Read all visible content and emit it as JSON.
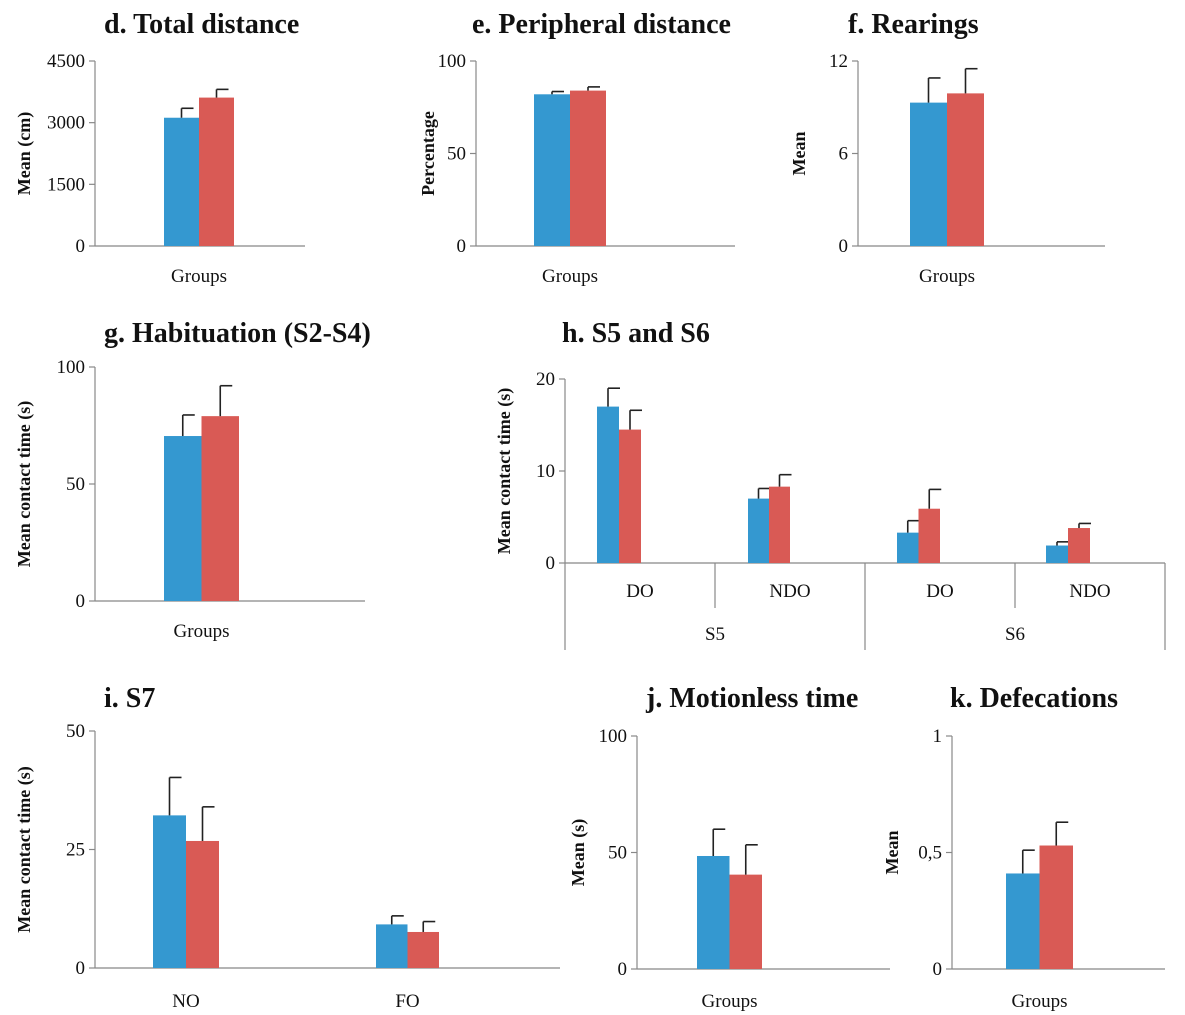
{
  "colors": {
    "series_a": "#3498d0",
    "series_b": "#d95a55"
  },
  "chart_data": [
    {
      "type": "bar",
      "panel": "d",
      "title": "d. Total distance",
      "ylabel": "Mean (cm)",
      "xlabel": "Groups",
      "ylim": [
        0,
        4500
      ],
      "yticks": [
        0,
        1500,
        3000,
        4500
      ],
      "ytick_labels": [
        "0",
        "1500",
        "3000",
        "4500"
      ],
      "categories": [
        ""
      ],
      "series": [
        {
          "values": [
            3120
          ],
          "errors": [
            230
          ]
        },
        {
          "values": [
            3610
          ],
          "errors": [
            200
          ]
        }
      ]
    },
    {
      "type": "bar",
      "panel": "e",
      "title": "e. Peripheral distance",
      "ylabel": "Percentage",
      "xlabel": "Groups",
      "ylim": [
        0,
        100
      ],
      "yticks": [
        0,
        50,
        100
      ],
      "ytick_labels": [
        "0",
        "50",
        "100"
      ],
      "categories": [
        ""
      ],
      "series": [
        {
          "values": [
            82
          ],
          "errors": [
            1.5
          ]
        },
        {
          "values": [
            84
          ],
          "errors": [
            2
          ]
        }
      ]
    },
    {
      "type": "bar",
      "panel": "f",
      "title": "f. Rearings",
      "ylabel": "Mean",
      "xlabel": "Groups",
      "ylim": [
        0,
        12
      ],
      "yticks": [
        0,
        6,
        12
      ],
      "ytick_labels": [
        "0",
        "6",
        "12"
      ],
      "categories": [
        ""
      ],
      "series": [
        {
          "values": [
            9.3
          ],
          "errors": [
            1.6
          ]
        },
        {
          "values": [
            9.9
          ],
          "errors": [
            1.6
          ]
        }
      ]
    },
    {
      "type": "bar",
      "panel": "g",
      "title": "g. Habituation (S2-S4)",
      "ylabel": "Mean contact time (s)",
      "xlabel": "Groups",
      "ylim": [
        0,
        100
      ],
      "yticks": [
        0,
        50,
        100
      ],
      "ytick_labels": [
        "0",
        "50",
        "100"
      ],
      "categories": [
        ""
      ],
      "series": [
        {
          "values": [
            70.5
          ],
          "errors": [
            9
          ]
        },
        {
          "values": [
            79
          ],
          "errors": [
            13
          ]
        }
      ]
    },
    {
      "type": "bar",
      "panel": "h",
      "title": "h. S5 and S6",
      "ylabel": "Mean contact time (s)",
      "xlabel": "",
      "ylim": [
        0,
        20
      ],
      "yticks": [
        0,
        10,
        20
      ],
      "ytick_labels": [
        "0",
        "10",
        "20"
      ],
      "categories": [
        "DO",
        "NDO",
        "DO",
        "NDO"
      ],
      "groups": [
        "S5",
        "S6"
      ],
      "series": [
        {
          "values": [
            17,
            7,
            3.3,
            1.9
          ],
          "errors": [
            2,
            1.1,
            1.3,
            0.4
          ]
        },
        {
          "values": [
            14.5,
            8.3,
            5.9,
            3.8
          ],
          "errors": [
            2.1,
            1.3,
            2.1,
            0.5
          ]
        }
      ]
    },
    {
      "type": "bar",
      "panel": "i",
      "title": "i. S7",
      "ylabel": "Mean contact time (s)",
      "xlabel": "",
      "ylim": [
        0,
        50
      ],
      "yticks": [
        0,
        25,
        50
      ],
      "ytick_labels": [
        "0",
        "25",
        "50"
      ],
      "categories": [
        "NO",
        "FO"
      ],
      "series": [
        {
          "values": [
            32.2,
            9.2
          ],
          "errors": [
            8,
            1.8
          ]
        },
        {
          "values": [
            26.8,
            7.6
          ],
          "errors": [
            7.2,
            2.2
          ]
        }
      ]
    },
    {
      "type": "bar",
      "panel": "j",
      "title": "j. Motionless  time",
      "ylabel": "Mean (s)",
      "xlabel": "Groups",
      "ylim": [
        0,
        100
      ],
      "yticks": [
        0,
        50,
        100
      ],
      "ytick_labels": [
        "0",
        "50",
        "100"
      ],
      "categories": [
        ""
      ],
      "series": [
        {
          "values": [
            48.5
          ],
          "errors": [
            11.5
          ]
        },
        {
          "values": [
            40.5
          ],
          "errors": [
            12.8
          ]
        }
      ]
    },
    {
      "type": "bar",
      "panel": "k",
      "title": "k. Defecations",
      "ylabel": "Mean",
      "xlabel": "Groups",
      "ylim": [
        0,
        1
      ],
      "yticks": [
        0,
        0.5,
        1
      ],
      "ytick_labels": [
        "0",
        "0,5",
        "1"
      ],
      "categories": [
        ""
      ],
      "series": [
        {
          "values": [
            0.41
          ],
          "errors": [
            0.1
          ]
        },
        {
          "values": [
            0.53
          ],
          "errors": [
            0.1
          ]
        }
      ]
    }
  ]
}
